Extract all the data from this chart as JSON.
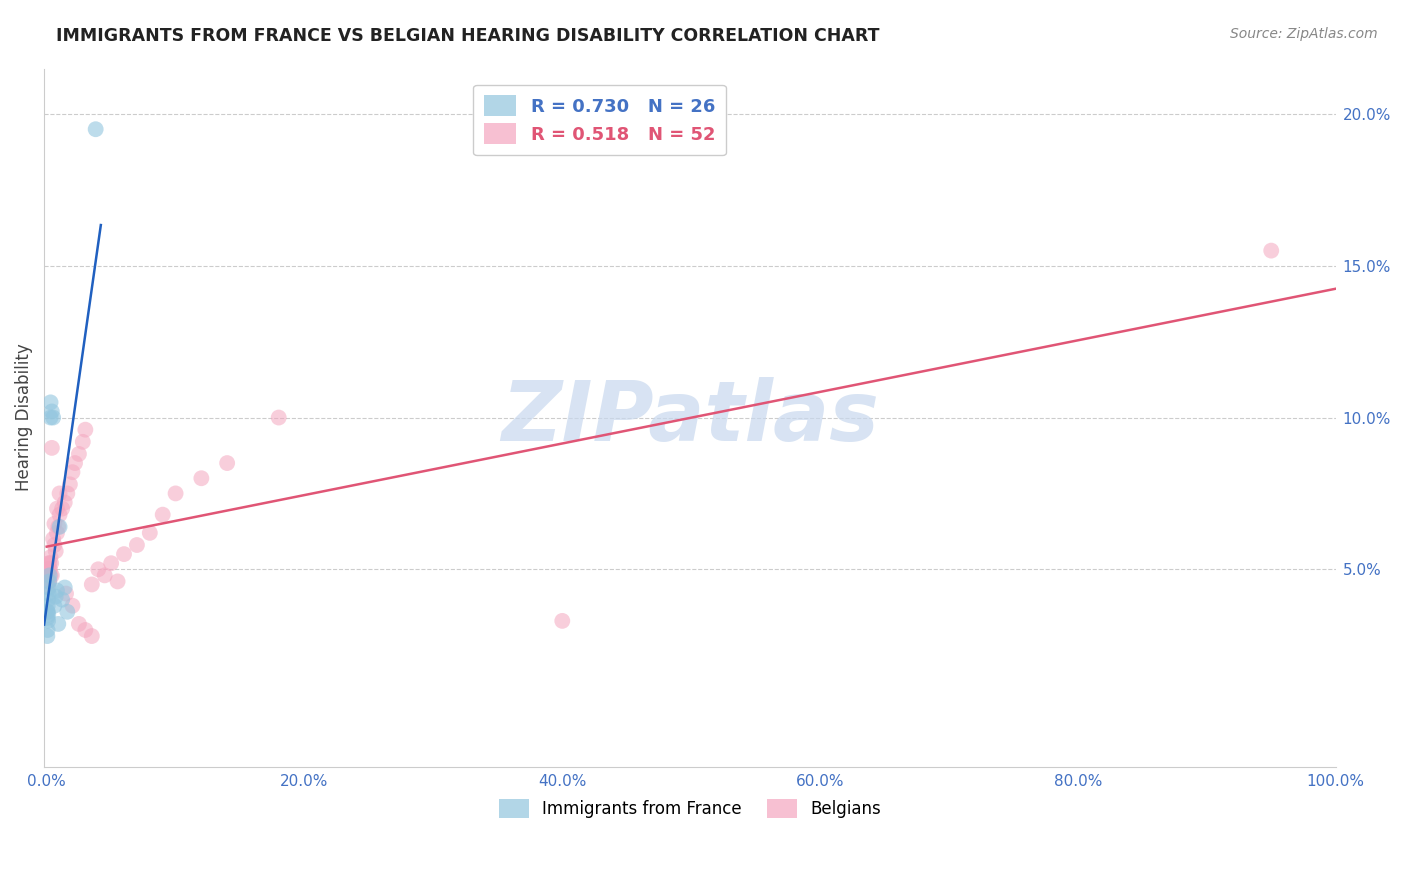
{
  "title": "IMMIGRANTS FROM FRANCE VS BELGIAN HEARING DISABILITY CORRELATION CHART",
  "source": "Source: ZipAtlas.com",
  "ylabel": "Hearing Disability",
  "ytick_labels": [
    "5.0%",
    "10.0%",
    "15.0%",
    "20.0%"
  ],
  "ytick_values": [
    0.05,
    0.1,
    0.15,
    0.2
  ],
  "xlim": [
    -0.002,
    1.0
  ],
  "ylim": [
    -0.015,
    0.215
  ],
  "watermark": "ZIPatlas",
  "blue_color": "#92c5de",
  "pink_color": "#f4a6bf",
  "blue_line_color": "#2060c0",
  "pink_line_color": "#e05575",
  "france_x": [
    0.0005,
    0.001,
    0.0008,
    0.0012,
    0.0015,
    0.0006,
    0.0009,
    0.0011,
    0.0007,
    0.002,
    0.0018,
    0.0022,
    0.003,
    0.003,
    0.004,
    0.005,
    0.006,
    0.007,
    0.008,
    0.009,
    0.01,
    0.012,
    0.014,
    0.016,
    0.0005,
    0.038
  ],
  "france_y": [
    0.036,
    0.04,
    0.038,
    0.035,
    0.042,
    0.034,
    0.036,
    0.033,
    0.03,
    0.046,
    0.044,
    0.048,
    0.1,
    0.105,
    0.102,
    0.1,
    0.038,
    0.041,
    0.043,
    0.032,
    0.064,
    0.04,
    0.044,
    0.036,
    0.028,
    0.195
  ],
  "belgian_x": [
    0.0005,
    0.001,
    0.0015,
    0.002,
    0.0025,
    0.003,
    0.0035,
    0.004,
    0.005,
    0.006,
    0.007,
    0.008,
    0.009,
    0.01,
    0.012,
    0.014,
    0.016,
    0.018,
    0.02,
    0.022,
    0.025,
    0.028,
    0.03,
    0.035,
    0.04,
    0.045,
    0.05,
    0.055,
    0.06,
    0.07,
    0.08,
    0.09,
    0.1,
    0.12,
    0.14,
    0.0008,
    0.0012,
    0.0018,
    0.0022,
    0.003,
    0.004,
    0.006,
    0.008,
    0.01,
    0.015,
    0.02,
    0.025,
    0.03,
    0.035,
    0.18,
    0.4,
    0.95
  ],
  "belgian_y": [
    0.05,
    0.048,
    0.052,
    0.046,
    0.05,
    0.054,
    0.052,
    0.048,
    0.06,
    0.058,
    0.056,
    0.062,
    0.064,
    0.068,
    0.07,
    0.072,
    0.075,
    0.078,
    0.082,
    0.085,
    0.088,
    0.092,
    0.096,
    0.045,
    0.05,
    0.048,
    0.052,
    0.046,
    0.055,
    0.058,
    0.062,
    0.068,
    0.075,
    0.08,
    0.085,
    0.044,
    0.046,
    0.05,
    0.052,
    0.048,
    0.09,
    0.065,
    0.07,
    0.075,
    0.042,
    0.038,
    0.032,
    0.03,
    0.028,
    0.1,
    0.033,
    0.155
  ]
}
